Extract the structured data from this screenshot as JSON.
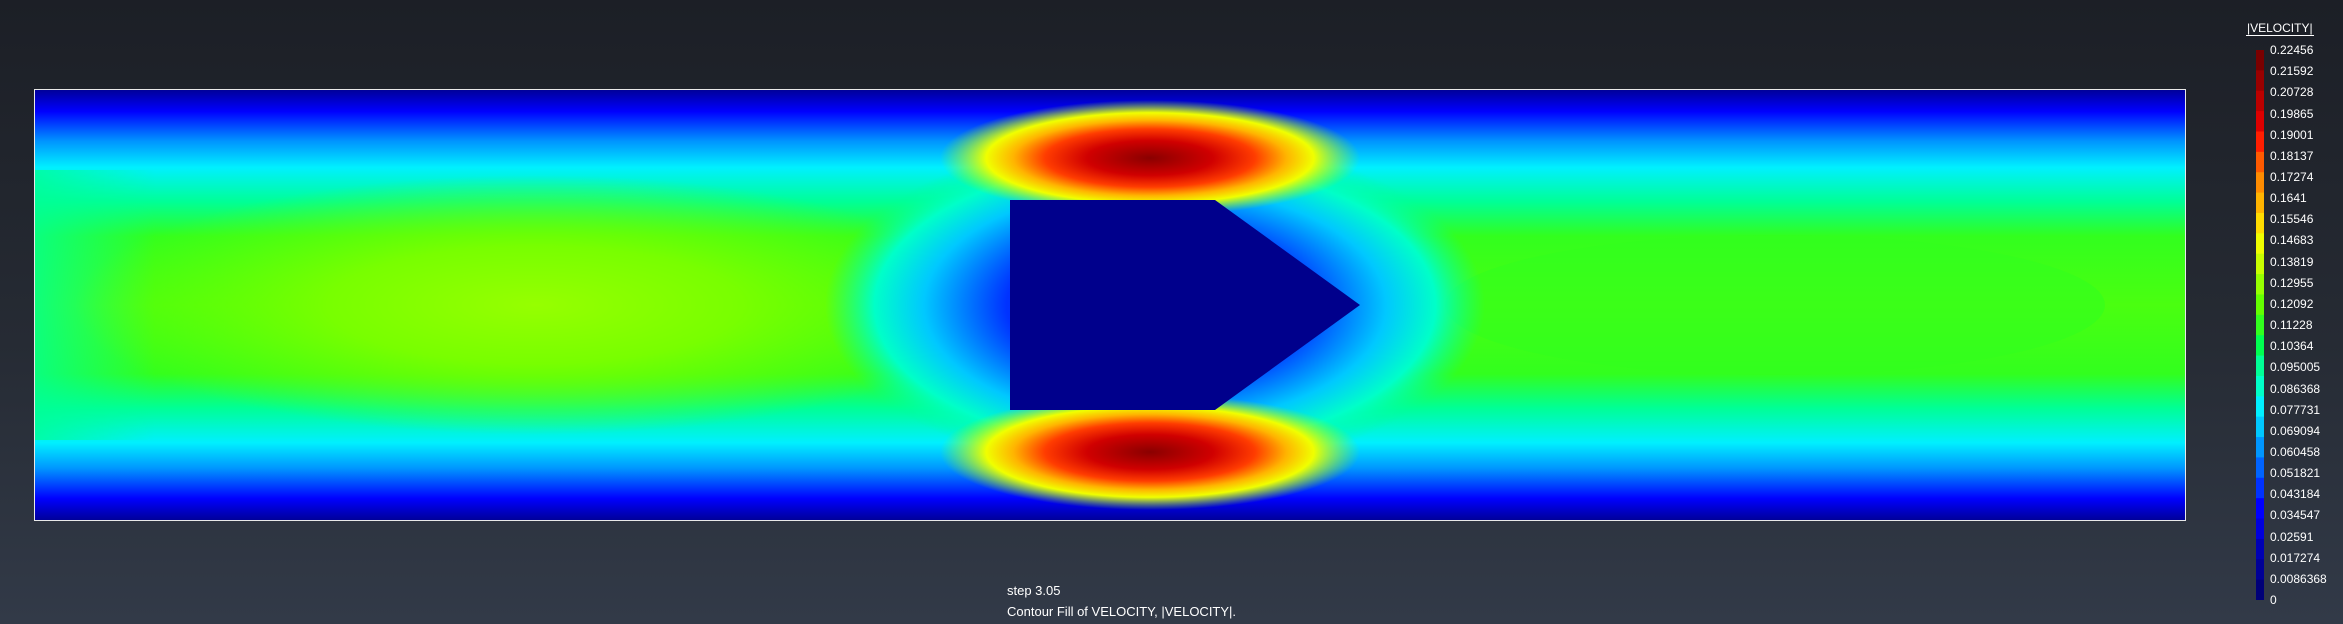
{
  "legend": {
    "title": "|VELOCITY|",
    "labels": [
      "0.22456",
      "0.21592",
      "0.20728",
      "0.19865",
      "0.19001",
      "0.18137",
      "0.17274",
      "0.1641",
      "0.15546",
      "0.14683",
      "0.13819",
      "0.12955",
      "0.12092",
      "0.11228",
      "0.10364",
      "0.095005",
      "0.086368",
      "0.077731",
      "0.069094",
      "0.060458",
      "0.051821",
      "0.043184",
      "0.034547",
      "0.02591",
      "0.017274",
      "0.0086368",
      "0"
    ],
    "colors": [
      "#7a0000",
      "#9a0000",
      "#bb0000",
      "#dd0000",
      "#ff1e00",
      "#ff5a00",
      "#ff8c00",
      "#ffb400",
      "#ffdc00",
      "#f0ff00",
      "#c8ff00",
      "#96ff00",
      "#64ff00",
      "#32ff1e",
      "#00ff50",
      "#00ff96",
      "#00ffc8",
      "#00f0ff",
      "#00c8ff",
      "#0096ff",
      "#0064ff",
      "#0032ff",
      "#0000ff",
      "#0000dc",
      "#0000b4",
      "#000096",
      "#000078"
    ]
  },
  "colors": {
    "background_top": "#1c1f26",
    "background_bottom": "#323a48",
    "frame_outline": "#e8e8e8",
    "obstacle": "#00008c"
  },
  "caption": {
    "step": "step 3.05",
    "description": "Contour Fill of VELOCITY, |VELOCITY|."
  }
}
